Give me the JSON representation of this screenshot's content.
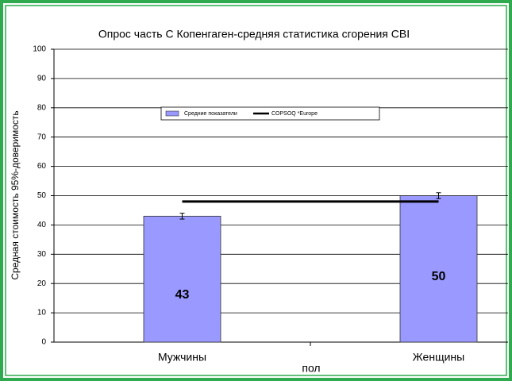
{
  "chart_data": {
    "type": "bar",
    "title": "Опрос часть С Копенгаген-средняя статистика сгорения CBI",
    "xlabel": "пол",
    "ylabel": "Средная стоимость 95%-доверимость",
    "categories": [
      "Мужчины",
      "Женщины"
    ],
    "series": [
      {
        "name": "Средние показатели",
        "color": "#9999ff",
        "values": [
          43,
          50
        ],
        "errors": [
          1,
          1
        ]
      },
      {
        "name": "COPSOQ *Europe",
        "type": "line",
        "color": "#000000",
        "values": [
          48,
          48
        ]
      }
    ],
    "ylim": [
      0,
      100
    ],
    "yticks": [
      0,
      10,
      20,
      30,
      40,
      50,
      60,
      70,
      80,
      90,
      100
    ],
    "grid": true,
    "legend": "center"
  }
}
